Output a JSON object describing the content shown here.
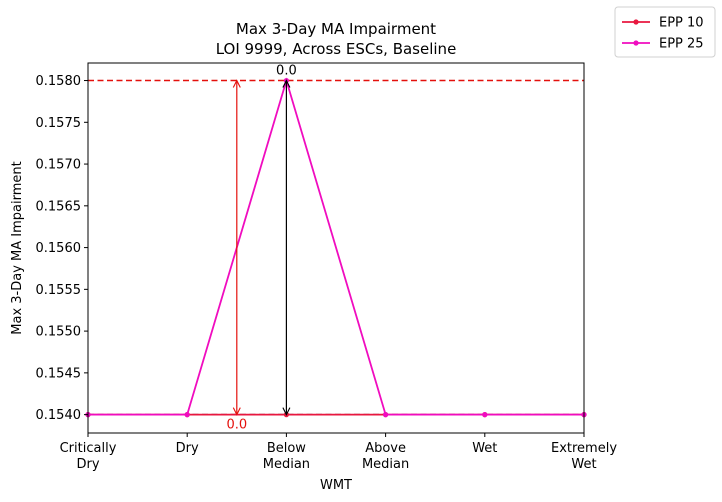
{
  "chart_data": {
    "type": "line",
    "title": "Max 3-Day MA Impairment",
    "subtitle": "LOI 9999, Across ESCs, Baseline",
    "xlabel": "WMT",
    "ylabel": "Max 3-Day MA Impairment",
    "categories": [
      [
        "Critically",
        "Dry"
      ],
      [
        "Dry"
      ],
      [
        "Below",
        "Median"
      ],
      [
        "Above",
        "Median"
      ],
      [
        "Wet"
      ],
      [
        "Extremely",
        "Wet"
      ]
    ],
    "ylim": [
      0.15378,
      0.15821
    ],
    "yticks": [
      0.154,
      0.1545,
      0.155,
      0.1555,
      0.156,
      0.1565,
      0.157,
      0.1575,
      0.158
    ],
    "ytick_labels": [
      "0.1540",
      "0.1545",
      "0.1550",
      "0.1555",
      "0.1560",
      "0.1565",
      "0.1570",
      "0.1575",
      "0.1580"
    ],
    "grid": false,
    "legend_position": "outside top-right",
    "series": [
      {
        "name": "EPP 10",
        "color": "#e8173f",
        "values": [
          0.154,
          0.154,
          0.154,
          0.154,
          0.154,
          0.154
        ]
      },
      {
        "name": "EPP 25",
        "color": "#f00cbf",
        "values": [
          0.154,
          0.154,
          0.158,
          0.154,
          0.154,
          0.154
        ]
      }
    ],
    "reference_lines": [
      {
        "y": 0.158,
        "color": "#e4100c",
        "style": "dashed"
      },
      {
        "y": 0.154,
        "color": "#000000",
        "style": "dashed"
      }
    ],
    "annotations": [
      {
        "text": "0.0",
        "color": "#e4100c",
        "x_category": 1.5,
        "from": 0.154,
        "to": 0.158,
        "label_at": "bottom"
      },
      {
        "text": "0.0",
        "color": "#000000",
        "x_category": 2,
        "from": 0.158,
        "to": 0.154,
        "label_at": "top"
      }
    ]
  }
}
